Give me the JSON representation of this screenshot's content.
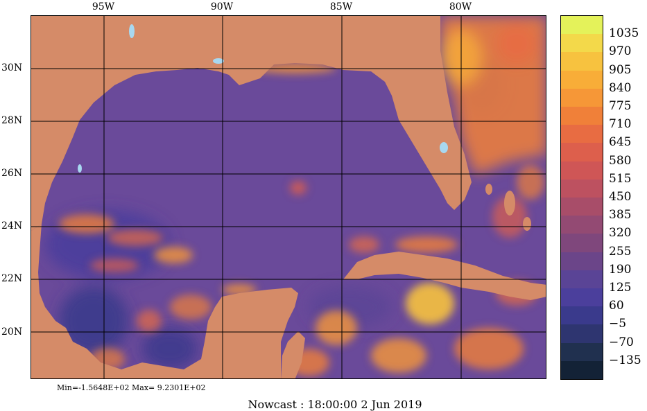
{
  "axes": {
    "lon_labels": [
      "95W",
      "90W",
      "85W",
      "80W"
    ],
    "lat_labels": [
      "30N",
      "28N",
      "26N",
      "24N",
      "22N",
      "20N"
    ]
  },
  "colorbar": {
    "levels": [
      "1035",
      "970",
      "905",
      "840",
      "775",
      "710",
      "645",
      "580",
      "515",
      "450",
      "385",
      "320",
      "255",
      "190",
      "125",
      "60",
      "−5",
      "−70",
      "−135"
    ],
    "colors": [
      "#e4f25a",
      "#f3d94a",
      "#f7c23f",
      "#f8ad38",
      "#f69737",
      "#f08039",
      "#e86c42",
      "#dd5f4c",
      "#cf5656",
      "#bd5160",
      "#a84d69",
      "#934a73",
      "#7f477c",
      "#6b4589",
      "#5a4496",
      "#4b3f9c",
      "#3a3a8c",
      "#2e3570",
      "#20304f",
      "#132236"
    ]
  },
  "stats": {
    "minmax_text": "Min=-1.5648E+02  Max= 9.2301E+02"
  },
  "footer": {
    "nowcast_text": "Nowcast : 18:00:00   2 Jun 2019"
  },
  "colors": {
    "land": "#d58b68",
    "ocean_base": "#6a4a9a",
    "lake": "#a8d8f0"
  }
}
